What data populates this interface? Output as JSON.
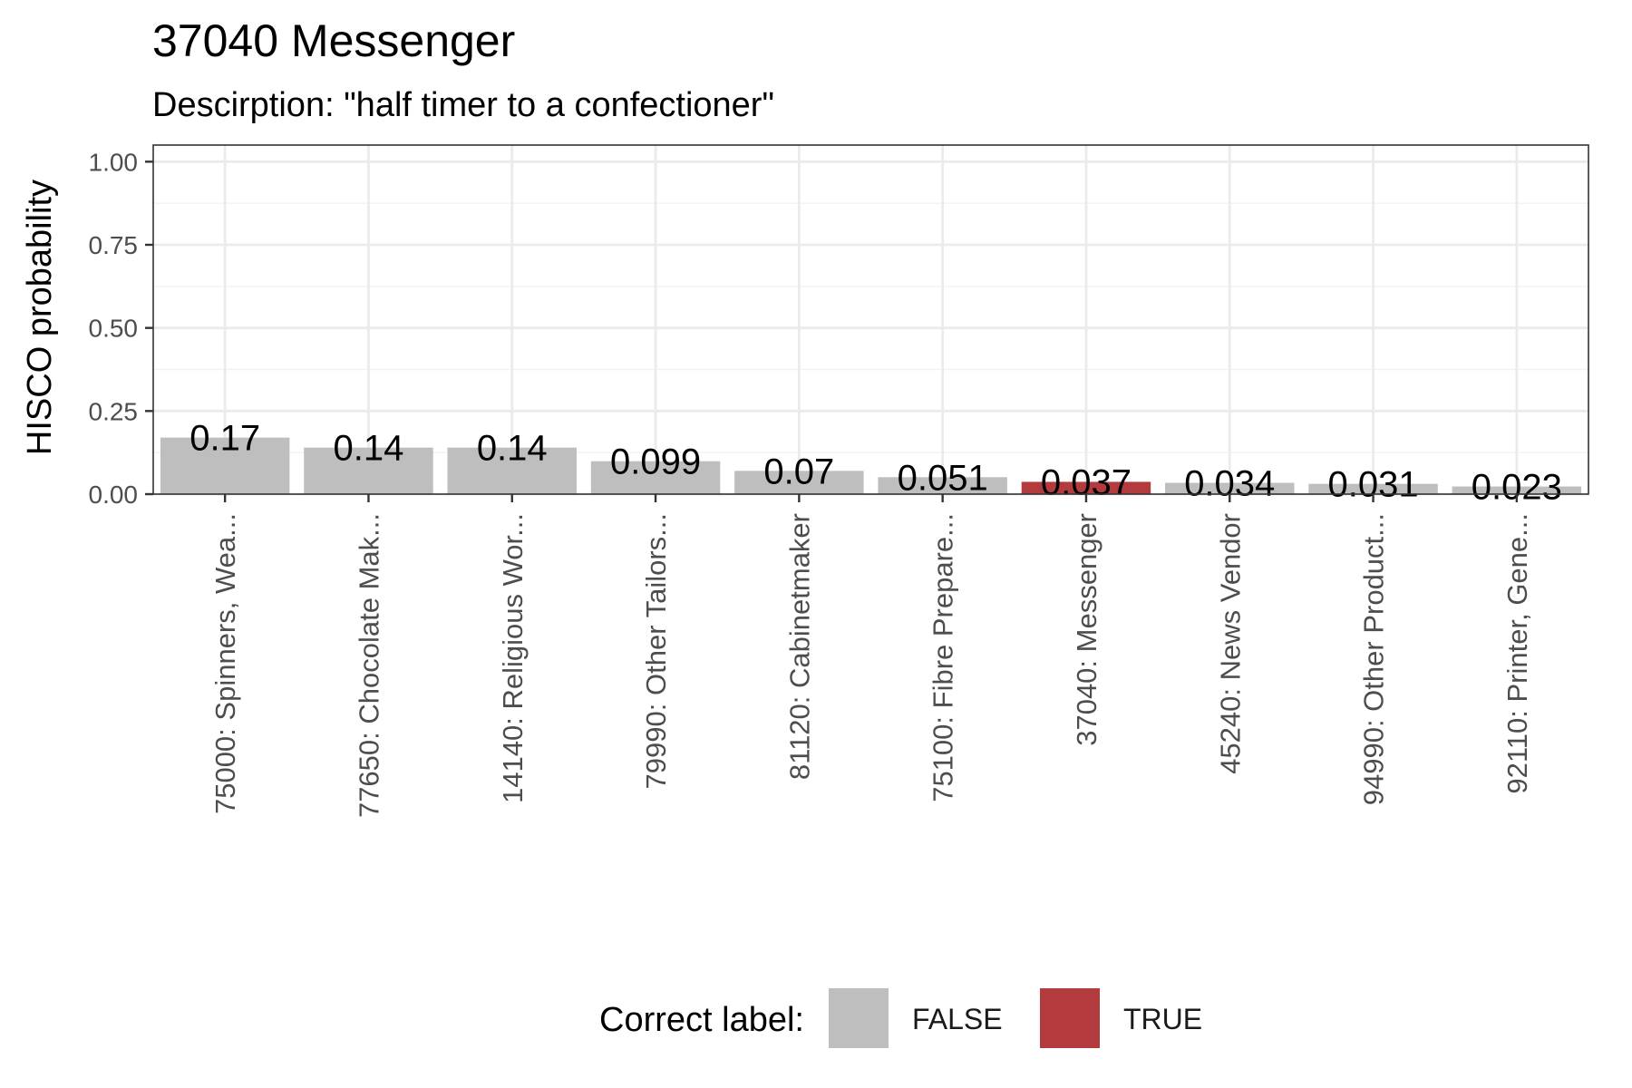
{
  "chart_data": {
    "type": "bar",
    "title": "37040 Messenger",
    "subtitle": "Descirption: \"half timer to a confectioner\"",
    "ylabel": "HISCO probability",
    "xlabel": "",
    "ylim": [
      0,
      1.05
    ],
    "yticks": [
      "0.00",
      "0.25",
      "0.50",
      "0.75",
      "1.00"
    ],
    "grid": true,
    "categories": [
      "75000: Spinners, Wea...",
      "77650: Chocolate Mak...",
      "14140: Religious Wor...",
      "79990: Other Tailors...",
      "81120: Cabinetmaker",
      "75100: Fibre Prepare...",
      "37040: Messenger",
      "45240: News Vendor",
      "94990: Other Product...",
      "92110: Printer, Gene..."
    ],
    "values": [
      0.17,
      0.14,
      0.14,
      0.099,
      0.07,
      0.051,
      0.037,
      0.034,
      0.031,
      0.023
    ],
    "value_labels": [
      "0.17",
      "0.14",
      "0.14",
      "0.099",
      "0.07",
      "0.051",
      "0.037",
      "0.034",
      "0.031",
      "0.023"
    ],
    "correct": [
      false,
      false,
      false,
      false,
      false,
      false,
      true,
      false,
      false,
      false
    ],
    "colors": {
      "FALSE": "#bebebe",
      "TRUE": "#b33b3d"
    },
    "legend": {
      "title": "Correct label:",
      "position": "bottom",
      "items": [
        "FALSE",
        "TRUE"
      ]
    }
  }
}
